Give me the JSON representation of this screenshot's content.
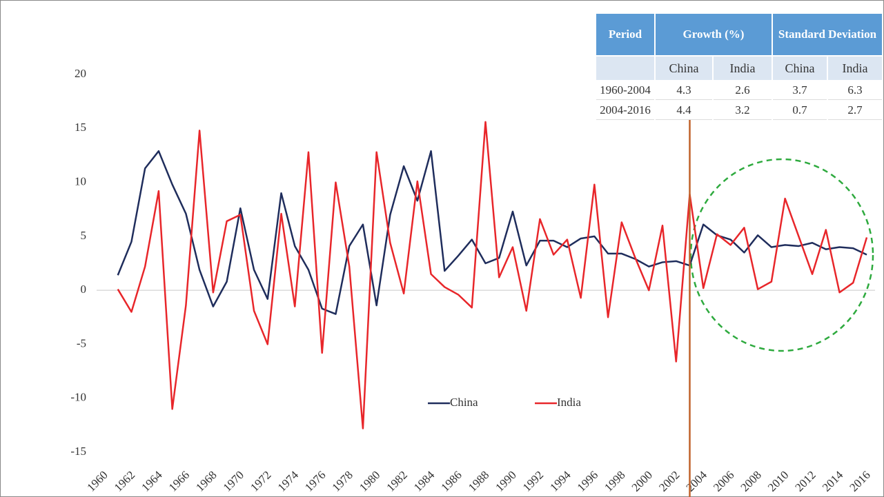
{
  "chart_data": {
    "type": "line",
    "x": [
      1961,
      1962,
      1963,
      1964,
      1965,
      1966,
      1967,
      1968,
      1969,
      1970,
      1971,
      1972,
      1973,
      1974,
      1975,
      1976,
      1977,
      1978,
      1979,
      1980,
      1981,
      1982,
      1983,
      1984,
      1985,
      1986,
      1987,
      1988,
      1989,
      1990,
      1991,
      1992,
      1993,
      1994,
      1995,
      1996,
      1997,
      1998,
      1999,
      2000,
      2001,
      2002,
      2003,
      2004,
      2005,
      2006,
      2007,
      2008,
      2009,
      2010,
      2011,
      2012,
      2013,
      2014,
      2015,
      2016
    ],
    "series": [
      {
        "name": "China",
        "color": "#1f2d5c",
        "values": [
          1.4,
          4.5,
          11.3,
          12.9,
          9.8,
          7.1,
          1.9,
          -1.5,
          0.8,
          7.6,
          1.9,
          -0.8,
          9.0,
          4.1,
          1.9,
          -1.7,
          -2.2,
          4.1,
          6.1,
          -1.4,
          7.0,
          11.5,
          8.3,
          12.9,
          1.8,
          3.2,
          4.7,
          2.5,
          3.0,
          7.3,
          2.3,
          4.6,
          4.6,
          4.0,
          4.8,
          5.0,
          3.4,
          3.4,
          2.9,
          2.2,
          2.6,
          2.7,
          2.3,
          6.1,
          5.1,
          4.7,
          3.5,
          5.1,
          4.0,
          4.2,
          4.1,
          4.4,
          3.8,
          4.0,
          3.9,
          3.3
        ]
      },
      {
        "name": "India",
        "color": "#e8262a",
        "values": [
          0.1,
          -2.0,
          2.2,
          9.2,
          -11.0,
          -1.4,
          14.8,
          -0.2,
          6.4,
          7.0,
          -1.9,
          -5.0,
          7.1,
          -1.5,
          12.8,
          -5.8,
          10.0,
          2.2,
          -12.8,
          12.8,
          4.4,
          -0.3,
          10.1,
          1.5,
          0.3,
          -0.4,
          -1.6,
          15.6,
          1.2,
          4.0,
          -1.9,
          6.6,
          3.3,
          4.7,
          -0.7,
          9.8,
          -2.5,
          6.3,
          3.0,
          0.0,
          6.0,
          -6.6,
          8.9,
          0.2,
          5.2,
          4.2,
          5.8,
          0.1,
          0.8,
          8.5,
          5.0,
          1.5,
          5.6,
          -0.2,
          0.7,
          4.9
        ]
      }
    ],
    "xlim": [
      1960,
      2016
    ],
    "xticks": [
      1960,
      1962,
      1964,
      1966,
      1968,
      1970,
      1972,
      1974,
      1976,
      1978,
      1980,
      1982,
      1984,
      1986,
      1988,
      1990,
      1992,
      1994,
      1996,
      1998,
      2000,
      2002,
      2004,
      2006,
      2008,
      2010,
      2012,
      2014,
      2016
    ],
    "ylim": [
      -15,
      20
    ],
    "yticks": [
      -15,
      -10,
      -5,
      0,
      5,
      10,
      15,
      20
    ],
    "grid": false,
    "vline": {
      "x": 2003,
      "color": "#c0622a"
    },
    "table": {
      "header": [
        "Period",
        "Growth (%)",
        "Standard Deviation"
      ],
      "subheader": [
        "China",
        "India",
        "China",
        "India"
      ],
      "rows": [
        [
          "1960-2004",
          "4.3",
          "2.6",
          "3.7",
          "6.3"
        ],
        [
          "2004-2016",
          "4.4",
          "3.2",
          "0.7",
          "2.7"
        ]
      ]
    }
  }
}
